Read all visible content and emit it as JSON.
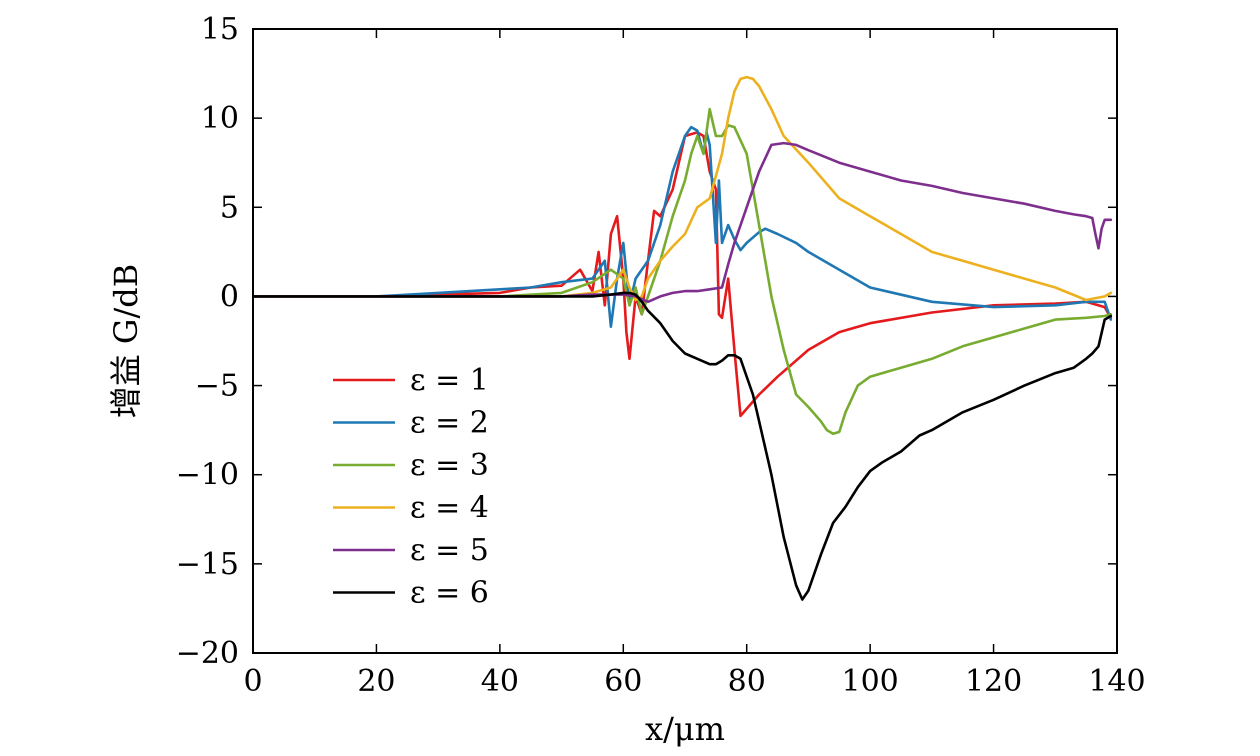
{
  "chart_data": {
    "type": "line",
    "xlabel": "x/μm",
    "ylabel": "增益 G/dB",
    "xlim": [
      0,
      140
    ],
    "ylim": [
      -20,
      15
    ],
    "xticks": [
      0,
      20,
      40,
      60,
      80,
      100,
      120,
      140
    ],
    "yticks": [
      15,
      10,
      5,
      0,
      -5,
      -10,
      -15,
      -20
    ],
    "ytick_labels": [
      "15",
      "10",
      "5",
      "0",
      "−5",
      "−10",
      "−15",
      "−20"
    ],
    "grid": false,
    "legend_position": "lower-left",
    "series": [
      {
        "name": "ε = 1",
        "color": "#e41a1c",
        "x": [
          0,
          10,
          20,
          30,
          40,
          45,
          50,
          53,
          55,
          56,
          57,
          58,
          59,
          60,
          60.5,
          61,
          62,
          63,
          64,
          65,
          66,
          68,
          70,
          72,
          73,
          74,
          75,
          75.5,
          76,
          77,
          78,
          79,
          82,
          85,
          90,
          95,
          100,
          110,
          120,
          130,
          135,
          138,
          139
        ],
        "y": [
          0,
          0,
          0,
          0.1,
          0.2,
          0.5,
          0.6,
          1.5,
          0.3,
          2.5,
          -0.5,
          3.5,
          4.5,
          1,
          -2,
          -3.5,
          0,
          -1,
          2,
          4.8,
          4.5,
          6,
          9,
          9.2,
          9,
          7,
          6,
          -1,
          -1.2,
          1,
          -3,
          -6.7,
          -5.5,
          -4.5,
          -3,
          -2,
          -1.5,
          -0.9,
          -0.5,
          -0.4,
          -0.3,
          -0.6,
          -1.2
        ]
      },
      {
        "name": "ε = 2",
        "color": "#1f78b4",
        "x": [
          0,
          10,
          20,
          30,
          40,
          45,
          50,
          55,
          57,
          58,
          59,
          60,
          61,
          62,
          64,
          66,
          68,
          70,
          71,
          72,
          73,
          73.5,
          74,
          75,
          75.5,
          76,
          77,
          78,
          79,
          80,
          82,
          83,
          85,
          88,
          90,
          95,
          100,
          110,
          120,
          130,
          135,
          138,
          139
        ],
        "y": [
          0,
          0,
          0,
          0.2,
          0.4,
          0.5,
          0.8,
          1,
          2,
          -1.7,
          1,
          3,
          -0.5,
          1,
          2,
          4,
          7,
          9,
          9.5,
          9.3,
          8,
          9.2,
          8.5,
          3,
          6.5,
          3,
          4,
          3.2,
          2.6,
          3,
          3.6,
          3.8,
          3.5,
          3,
          2.5,
          1.5,
          0.5,
          -0.3,
          -0.6,
          -0.5,
          -0.3,
          -0.3,
          -1.3
        ]
      },
      {
        "name": "ε = 3",
        "color": "#77ac30",
        "x": [
          0,
          10,
          20,
          30,
          40,
          50,
          55,
          58,
          60,
          61,
          62,
          63,
          64,
          66,
          68,
          70,
          71,
          72,
          73,
          74,
          75,
          76,
          77,
          78,
          80,
          82,
          84,
          86,
          88,
          90,
          92,
          93,
          94,
          95,
          96,
          98,
          100,
          105,
          110,
          115,
          120,
          125,
          130,
          135,
          138,
          139
        ],
        "y": [
          0,
          0,
          0,
          0,
          0,
          0.2,
          0.8,
          1.5,
          1,
          -0.5,
          0.5,
          -1,
          0,
          2,
          4.5,
          6.5,
          8,
          9,
          8,
          10.5,
          9,
          9,
          9.6,
          9.5,
          8,
          4,
          0,
          -3,
          -5.5,
          -6.2,
          -7,
          -7.5,
          -7.7,
          -7.6,
          -6.5,
          -5,
          -4.5,
          -4,
          -3.5,
          -2.8,
          -2.3,
          -1.8,
          -1.3,
          -1.2,
          -1.1,
          -1.0
        ]
      },
      {
        "name": "ε = 4",
        "color": "#edb120",
        "x": [
          0,
          10,
          20,
          30,
          40,
          50,
          55,
          58,
          60,
          61,
          62,
          63,
          64,
          66,
          68,
          70,
          72,
          74,
          76,
          77,
          78,
          79,
          80,
          81,
          82,
          84,
          86,
          90,
          95,
          100,
          105,
          110,
          115,
          120,
          125,
          130,
          135,
          138,
          139
        ],
        "y": [
          0,
          0,
          0,
          0,
          0,
          0,
          0.2,
          0.5,
          1.5,
          0.5,
          -0.2,
          0,
          1,
          2,
          2.8,
          3.5,
          5,
          5.5,
          8,
          10,
          11.5,
          12.2,
          12.3,
          12.2,
          11.8,
          10.5,
          9,
          7.5,
          5.5,
          4.5,
          3.5,
          2.5,
          2,
          1.5,
          1,
          0.5,
          -0.2,
          0,
          0.2
        ]
      },
      {
        "name": "ε = 5",
        "color": "#7e2f8e",
        "x": [
          0,
          10,
          20,
          30,
          40,
          50,
          55,
          60,
          62,
          64,
          66,
          68,
          70,
          72,
          74,
          76,
          77,
          78,
          80,
          82,
          84,
          86,
          88,
          90,
          95,
          100,
          105,
          110,
          115,
          120,
          125,
          130,
          133,
          135,
          136,
          136.5,
          137,
          137.5,
          138,
          139
        ],
        "y": [
          0,
          0,
          0,
          0,
          0,
          0,
          0.1,
          0.1,
          0,
          -0.3,
          0,
          0.2,
          0.3,
          0.3,
          0.4,
          0.5,
          1.8,
          3,
          5,
          7,
          8.5,
          8.6,
          8.5,
          8.2,
          7.5,
          7,
          6.5,
          6.2,
          5.8,
          5.5,
          5.2,
          4.8,
          4.6,
          4.5,
          4.4,
          3.5,
          2.7,
          3.8,
          4.3,
          4.3
        ]
      },
      {
        "name": "ε = 6",
        "color": "#000000",
        "x": [
          0,
          10,
          20,
          30,
          40,
          50,
          55,
          58,
          60,
          61,
          62,
          63,
          64,
          66,
          68,
          70,
          72,
          74,
          75,
          76,
          77,
          78,
          79,
          80,
          81,
          82,
          84,
          86,
          88,
          89,
          90,
          92,
          94,
          96,
          98,
          100,
          102,
          105,
          108,
          110,
          115,
          120,
          125,
          130,
          133,
          135,
          136,
          137,
          138,
          139
        ],
        "y": [
          0,
          0,
          0,
          0,
          0,
          0,
          0,
          0.1,
          0.2,
          0.2,
          0.1,
          -0.3,
          -0.8,
          -1.5,
          -2.5,
          -3.2,
          -3.5,
          -3.8,
          -3.8,
          -3.6,
          -3.3,
          -3.3,
          -3.5,
          -4.5,
          -5.5,
          -7,
          -10,
          -13.5,
          -16.2,
          -17,
          -16.5,
          -14.5,
          -12.7,
          -11.8,
          -10.7,
          -9.8,
          -9.3,
          -8.7,
          -7.8,
          -7.5,
          -6.5,
          -5.8,
          -5,
          -4.3,
          -4,
          -3.5,
          -3.2,
          -2.8,
          -1.3,
          -1.1
        ]
      }
    ]
  }
}
